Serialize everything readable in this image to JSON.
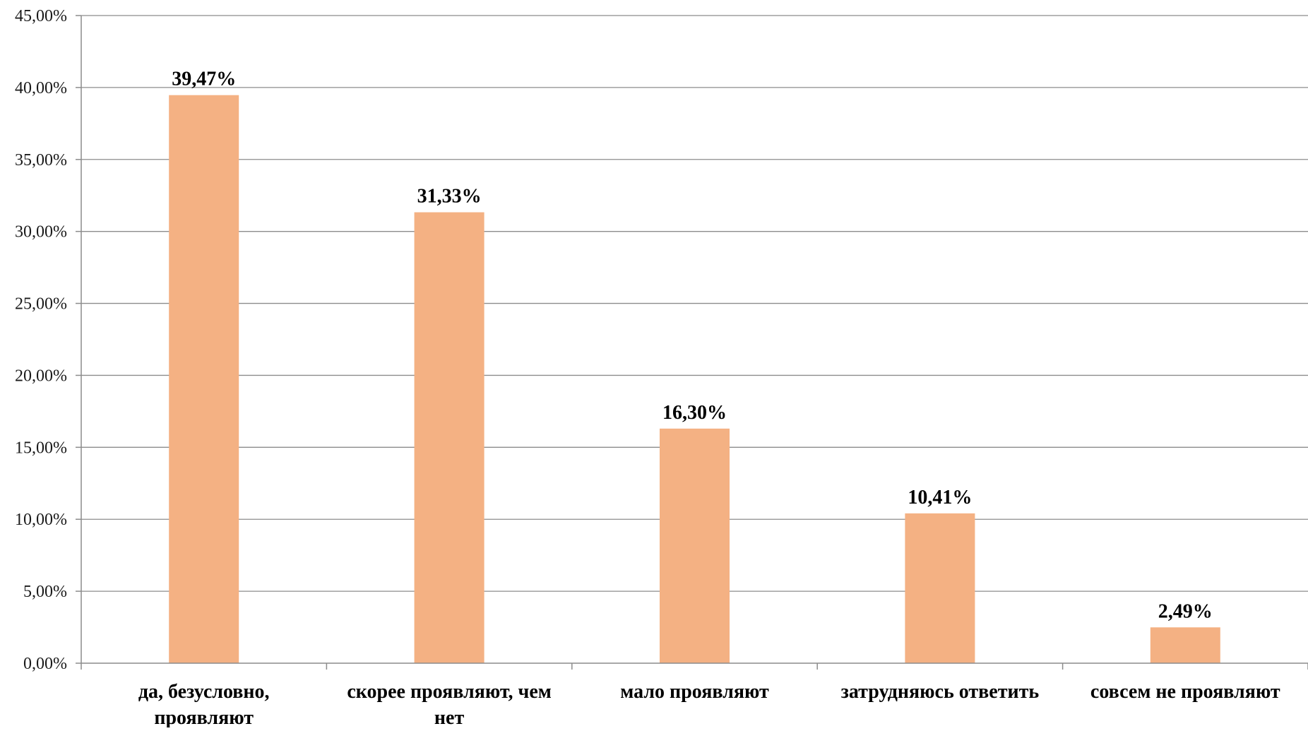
{
  "chart_data": {
    "type": "bar",
    "title": "",
    "xlabel": "",
    "ylabel": "",
    "categories": [
      "да, безусловно, проявляют",
      "скорее проявляют, чем нет",
      "мало проявляют",
      "затрудняюсь ответить",
      "совсем не проявляют"
    ],
    "category_label_lines": [
      [
        "да, безусловно,",
        "проявляют"
      ],
      [
        "скорее проявляют, чем",
        "нет"
      ],
      [
        "мало проявляют"
      ],
      [
        "затрудняюсь ответить"
      ],
      [
        "совсем не проявляют"
      ]
    ],
    "values": [
      39.47,
      31.33,
      16.3,
      10.41,
      2.49
    ],
    "data_labels": [
      "39,47%",
      "31,33%",
      "16,30%",
      "10,41%",
      "2,49%"
    ],
    "ylim": [
      0,
      45
    ],
    "yticks": [
      0,
      5,
      10,
      15,
      20,
      25,
      30,
      35,
      40,
      45
    ],
    "ytick_labels": [
      "0,00%",
      "5,00%",
      "10,00%",
      "15,00%",
      "20,00%",
      "25,00%",
      "30,00%",
      "35,00%",
      "40,00%",
      "45,00%"
    ],
    "grid": true,
    "legend": "none",
    "bar_color": "#F4B183",
    "grid_color": "#8C8C8C"
  }
}
